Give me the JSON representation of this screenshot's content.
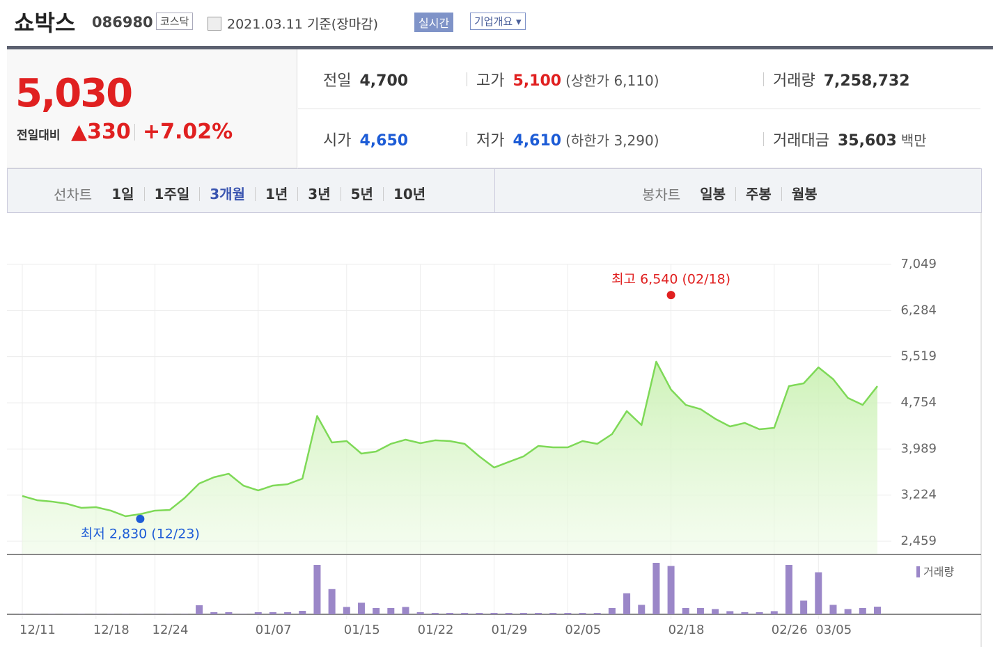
{
  "header": {
    "name": "쇼박스",
    "code": "086980",
    "market": "코스닥",
    "date": "2021.03.11 기준(장마감)",
    "realtime": "실시간",
    "company": "기업개요"
  },
  "quote": {
    "price": "5,030",
    "change_label": "전일대비",
    "change": "330",
    "rate": "+7.02%"
  },
  "stats": [
    {
      "label": "전일",
      "value": "4,700"
    },
    {
      "label": "고가",
      "value": "5,100",
      "note": "(상한가 6,110)"
    },
    {
      "label": "거래량",
      "value": "7,258,732"
    },
    {
      "label": "시가",
      "value": "4,650"
    },
    {
      "label": "저가",
      "value": "4,610",
      "note": "(하한가 3,290)"
    },
    {
      "label": "거래대금",
      "value": "35,603",
      "note": "백만"
    }
  ],
  "tabs": {
    "line_label": "선차트",
    "line_options": [
      "1일",
      "1주일",
      "3개월",
      "1년",
      "3년",
      "5년",
      "10년"
    ],
    "selected": "3개월",
    "candle_label": "봉차트",
    "candle_options": [
      "일봉",
      "주봉",
      "월봉"
    ]
  },
  "chart": {
    "type": "line",
    "categories": [
      "12/11",
      null,
      null,
      null,
      null,
      "12/18",
      null,
      null,
      null,
      "12/24",
      null,
      null,
      null,
      null,
      null,
      null,
      "01/07",
      null,
      null,
      null,
      null,
      null,
      "01/15",
      null,
      null,
      null,
      null,
      "01/22",
      null,
      null,
      null,
      null,
      "01/29",
      null,
      null,
      null,
      null,
      "02/05",
      null,
      null,
      null,
      null,
      null,
      null,
      "02/18",
      null,
      null,
      null,
      null,
      null,
      null,
      "02/26",
      null,
      null,
      "03/05",
      null,
      null,
      null,
      null
    ],
    "price": {
      "color": "#7ed957",
      "values": [
        3209,
        3140,
        3117,
        3082,
        3013,
        3024,
        2967,
        2874,
        2909,
        2967,
        2978,
        3174,
        3416,
        3520,
        3578,
        3381,
        3301,
        3382,
        3405,
        3497,
        4535,
        4097,
        4120,
        3912,
        3947,
        4074,
        4143,
        4085,
        4132,
        4120,
        4074,
        3866,
        3681,
        3774,
        3866,
        4039,
        4016,
        4016,
        4120,
        4074,
        4235,
        4616,
        4385,
        5435,
        4973,
        4719,
        4650,
        4489,
        4362,
        4420,
        4316,
        4339,
        5031,
        5077,
        5342,
        5146,
        4835,
        4719,
        5030
      ]
    },
    "ylim": [
      2459,
      7049
    ],
    "yticks": [
      {
        "value": 2459,
        "label": "2,459"
      },
      {
        "value": 3224,
        "label": "3,224"
      },
      {
        "value": 3989,
        "label": "3,989"
      },
      {
        "value": 4754,
        "label": "4,754"
      },
      {
        "value": 5519,
        "label": "5,519"
      },
      {
        "value": 6284,
        "label": "6,284"
      },
      {
        "value": 7049,
        "label": "7,049"
      }
    ],
    "grid": true,
    "high": {
      "label": "최고 6,540 (02/18)",
      "value": 6540,
      "index": 44,
      "color": "#e02020"
    },
    "low": {
      "label": "최저 2,830 (12/23)",
      "value": 2830,
      "index": 8,
      "color": "#1d5cd6"
    },
    "volume": {
      "name": "거래량",
      "color": "#9b87c8",
      "values": [
        0.3,
        0.3,
        0.3,
        0.3,
        0.3,
        0.3,
        0.3,
        0.3,
        0.3,
        0.3,
        0.3,
        0.3,
        8.6,
        2,
        2,
        0.3,
        2,
        2,
        2,
        3.3,
        47,
        24,
        7,
        11,
        6,
        6,
        7,
        2,
        1.3,
        1.3,
        1.3,
        1.3,
        1.3,
        1.3,
        1.3,
        1.3,
        1.3,
        1.3,
        1.3,
        1.3,
        6,
        20,
        9,
        49,
        46,
        6,
        6,
        5,
        3,
        2,
        2,
        3,
        47,
        13,
        40,
        9,
        5,
        6,
        7.26
      ]
    }
  }
}
